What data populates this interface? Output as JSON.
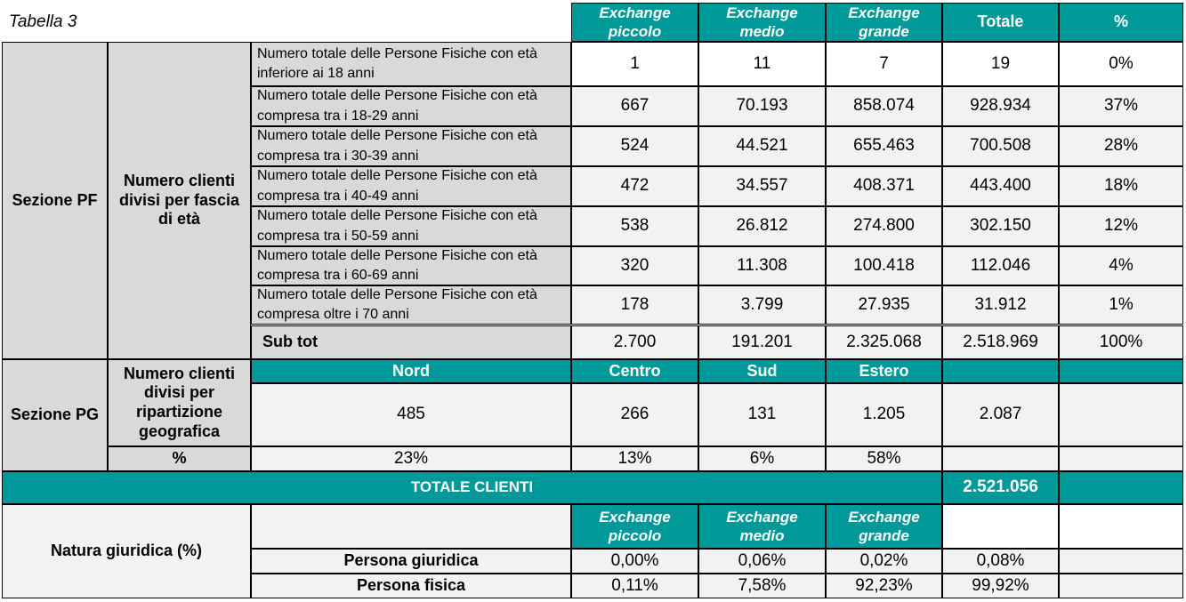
{
  "caption": "Tabella 3",
  "header": {
    "col1_a": "Exchange",
    "col1_b": "piccolo",
    "col2_a": "Exchange",
    "col2_b": "medio",
    "col3_a": "Exchange",
    "col3_b": "grande",
    "totale": "Totale",
    "pct": "%"
  },
  "pf": {
    "section_label": "Sezione PF",
    "group_label": "Numero clienti divisi per fascia di età",
    "rows": [
      {
        "desc": "Numero totale delle Persone Fisiche con età inferiore ai 18 anni",
        "piccolo": "1",
        "medio": "11",
        "grande": "7",
        "totale": "19",
        "pct": "0%"
      },
      {
        "desc": "Numero totale delle Persone Fisiche con età compresa tra i 18-29 anni",
        "piccolo": "667",
        "medio": "70.193",
        "grande": "858.074",
        "totale": "928.934",
        "pct": "37%"
      },
      {
        "desc": "Numero totale delle Persone Fisiche con età compresa tra i 30-39 anni",
        "piccolo": "524",
        "medio": "44.521",
        "grande": "655.463",
        "totale": "700.508",
        "pct": "28%"
      },
      {
        "desc": "Numero totale delle Persone Fisiche con età compresa tra i 40-49 anni",
        "piccolo": "472",
        "medio": "34.557",
        "grande": "408.371",
        "totale": "443.400",
        "pct": "18%"
      },
      {
        "desc": "Numero totale delle Persone Fisiche con età compresa tra i 50-59 anni",
        "piccolo": "538",
        "medio": "26.812",
        "grande": "274.800",
        "totale": "302.150",
        "pct": "12%"
      },
      {
        "desc": "Numero totale delle Persone Fisiche con età compresa tra i 60-69 anni",
        "piccolo": "320",
        "medio": "11.308",
        "grande": "100.418",
        "totale": "112.046",
        "pct": "4%"
      },
      {
        "desc": "Numero totale delle Persone Fisiche con età compresa oltre i 70 anni",
        "piccolo": "178",
        "medio": "3.799",
        "grande": "27.935",
        "totale": "31.912",
        "pct": "1%"
      }
    ],
    "subtot": {
      "label": "Sub tot",
      "piccolo": "2.700",
      "medio": "191.201",
      "grande": "2.325.068",
      "totale": "2.518.969",
      "pct": "100%"
    }
  },
  "pg": {
    "section_label": "Sezione PG",
    "group_label": "Numero clienti divisi per ripartizione geografica",
    "headers": {
      "nord": "Nord",
      "centro": "Centro",
      "sud": "Sud",
      "estero": "Estero"
    },
    "values": {
      "nord": "485",
      "centro": "266",
      "sud": "131",
      "estero": "1.205",
      "totale": "2.087"
    },
    "pct_label": "%",
    "pcts": {
      "nord": "23%",
      "centro": "13%",
      "sud": "6%",
      "estero": "58%"
    }
  },
  "totale_clienti": {
    "label": "TOTALE CLIENTI",
    "value": "2.521.056"
  },
  "natura": {
    "label": "Natura giuridica (%)",
    "rows": [
      {
        "label": "Persona giuridica",
        "piccolo": "0,00%",
        "medio": "0,06%",
        "grande": "0,02%",
        "totale": "0,08%"
      },
      {
        "label": "Persona fisica",
        "piccolo": "0,11%",
        "medio": "7,58%",
        "grande": "92,23%",
        "totale": "99,92%"
      }
    ]
  }
}
